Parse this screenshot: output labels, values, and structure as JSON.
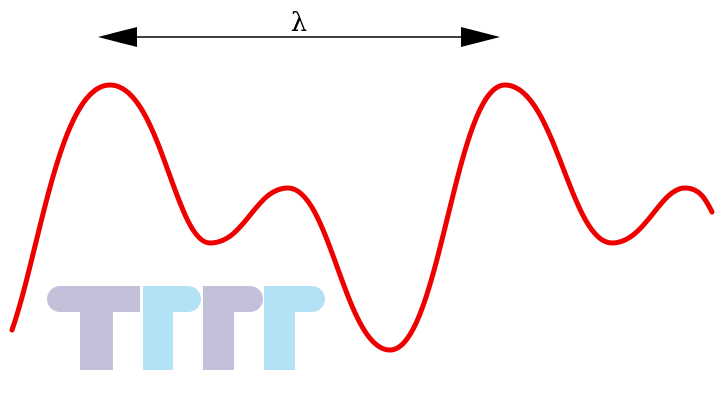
{
  "diagram": {
    "wavelength_label": "λ",
    "colors": {
      "wave": "#ee0000",
      "arrow": "#000000",
      "logo_gray": "#c3c1da",
      "logo_blue": "#b3e1f6"
    },
    "logo": {
      "letters": [
        "T",
        "T",
        "T",
        "T"
      ]
    }
  }
}
